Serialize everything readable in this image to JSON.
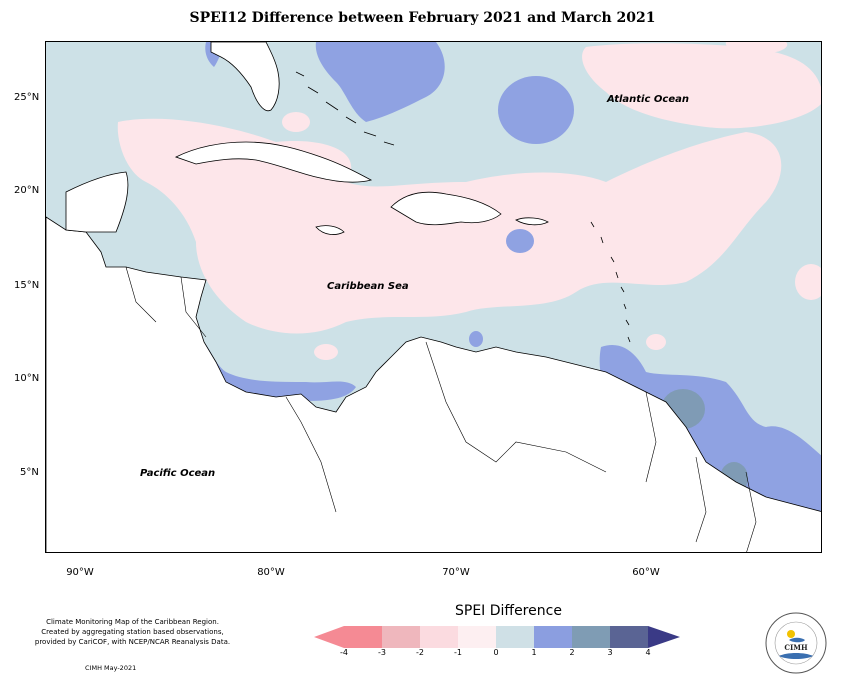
{
  "title": "SPEI12 Difference between February 2021 and March 2021",
  "labels": {
    "atlantic": "Atlantic Ocean",
    "caribbean": "Caribbean Sea",
    "pacific": "Pacific Ocean"
  },
  "axes": {
    "y_ticks": [
      "25°N",
      "20°N",
      "15°N",
      "10°N",
      "5°N"
    ],
    "x_ticks": [
      "90°W",
      "80°W",
      "70°W",
      "60°W"
    ]
  },
  "footer": {
    "description_line1": "Climate Monitoring Map of the Caribbean Region.",
    "description_line2": "Created by aggregating station based observations,",
    "description_line3": "provided by CariCOF, with NCEP/NCAR Reanalysis Data.",
    "credit": "CIMH May-2021"
  },
  "legend": {
    "title": "SPEI Difference",
    "ticks": [
      "-4",
      "-3",
      "-2",
      "-1",
      "0",
      "1",
      "2",
      "3",
      "4"
    ],
    "colors": [
      "#f58a94",
      "#efb7bd",
      "#fbdbe0",
      "#fdeff1",
      "#cfe0e6",
      "#8b9ee0",
      "#7f9cb4",
      "#5a6494",
      "#3a3a86"
    ]
  },
  "logo": {
    "text": "CIMH"
  },
  "colors": {
    "pink": "#fde6ea",
    "light_blue": "#cde1e7",
    "blue": "#8fa2e2",
    "steel": "#7f9bb5",
    "land": "#ffffff"
  }
}
